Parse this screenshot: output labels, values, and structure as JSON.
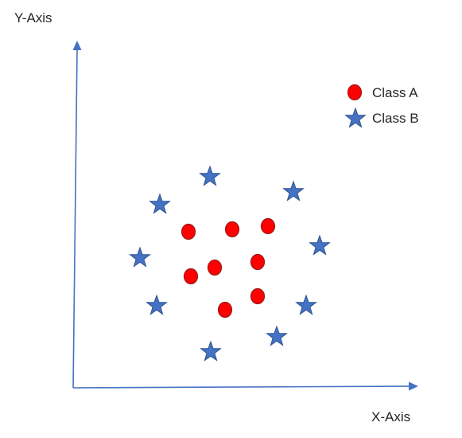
{
  "axes": {
    "x_label": "X-Axis",
    "y_label": "Y-Axis",
    "color": "#4472c4"
  },
  "legend": [
    {
      "label": "Class A",
      "marker": "circle",
      "color": "#ff0000",
      "stroke": "#9b1b1b"
    },
    {
      "label": "Class B",
      "marker": "star",
      "color": "#4472c4",
      "stroke": "#2f528f"
    }
  ]
}
